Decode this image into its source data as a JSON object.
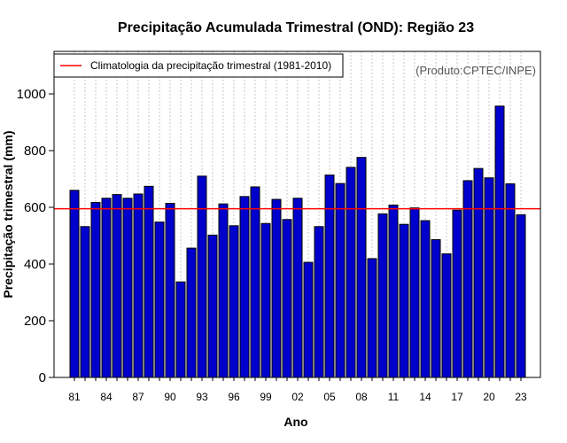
{
  "chart_data": {
    "type": "bar",
    "title": "Precipitação Acumulada Trimestral (OND): Região 23",
    "xlabel": "Ano",
    "ylabel": "Precipitação trimestral (mm)",
    "ylim": [
      0,
      1150
    ],
    "yticks": [
      0,
      200,
      400,
      600,
      800,
      1000
    ],
    "grid": "vertical dotted",
    "legend_position": "top-left",
    "reference_line": {
      "label": "Climatologia da precipitação trimestral (1981-2010)",
      "value": 595,
      "color": "#ff0000"
    },
    "product_label": "(Produto:CPTEC/INPE)",
    "bar_color": "#0000cc",
    "xtick_labels": [
      "81",
      "84",
      "87",
      "90",
      "93",
      "96",
      "99",
      "02",
      "05",
      "08",
      "11",
      "14",
      "17",
      "20",
      "23"
    ],
    "categories": [
      "1981",
      "1982",
      "1983",
      "1984",
      "1985",
      "1986",
      "1987",
      "1988",
      "1989",
      "1990",
      "1991",
      "1992",
      "1993",
      "1994",
      "1995",
      "1996",
      "1997",
      "1998",
      "1999",
      "2000",
      "2001",
      "2002",
      "2003",
      "2004",
      "2005",
      "2006",
      "2007",
      "2008",
      "2009",
      "2010",
      "2011",
      "2012",
      "2013",
      "2014",
      "2015",
      "2016",
      "2017",
      "2018",
      "2019",
      "2020",
      "2021",
      "2022",
      "2023"
    ],
    "values": [
      660,
      532,
      617,
      632,
      645,
      632,
      647,
      674,
      548,
      614,
      337,
      456,
      710,
      502,
      612,
      535,
      638,
      672,
      543,
      628,
      557,
      632,
      406,
      532,
      714,
      684,
      741,
      776,
      419,
      577,
      608,
      540,
      598,
      553,
      486,
      436,
      590,
      694,
      737,
      704,
      957,
      683,
      574
    ]
  }
}
